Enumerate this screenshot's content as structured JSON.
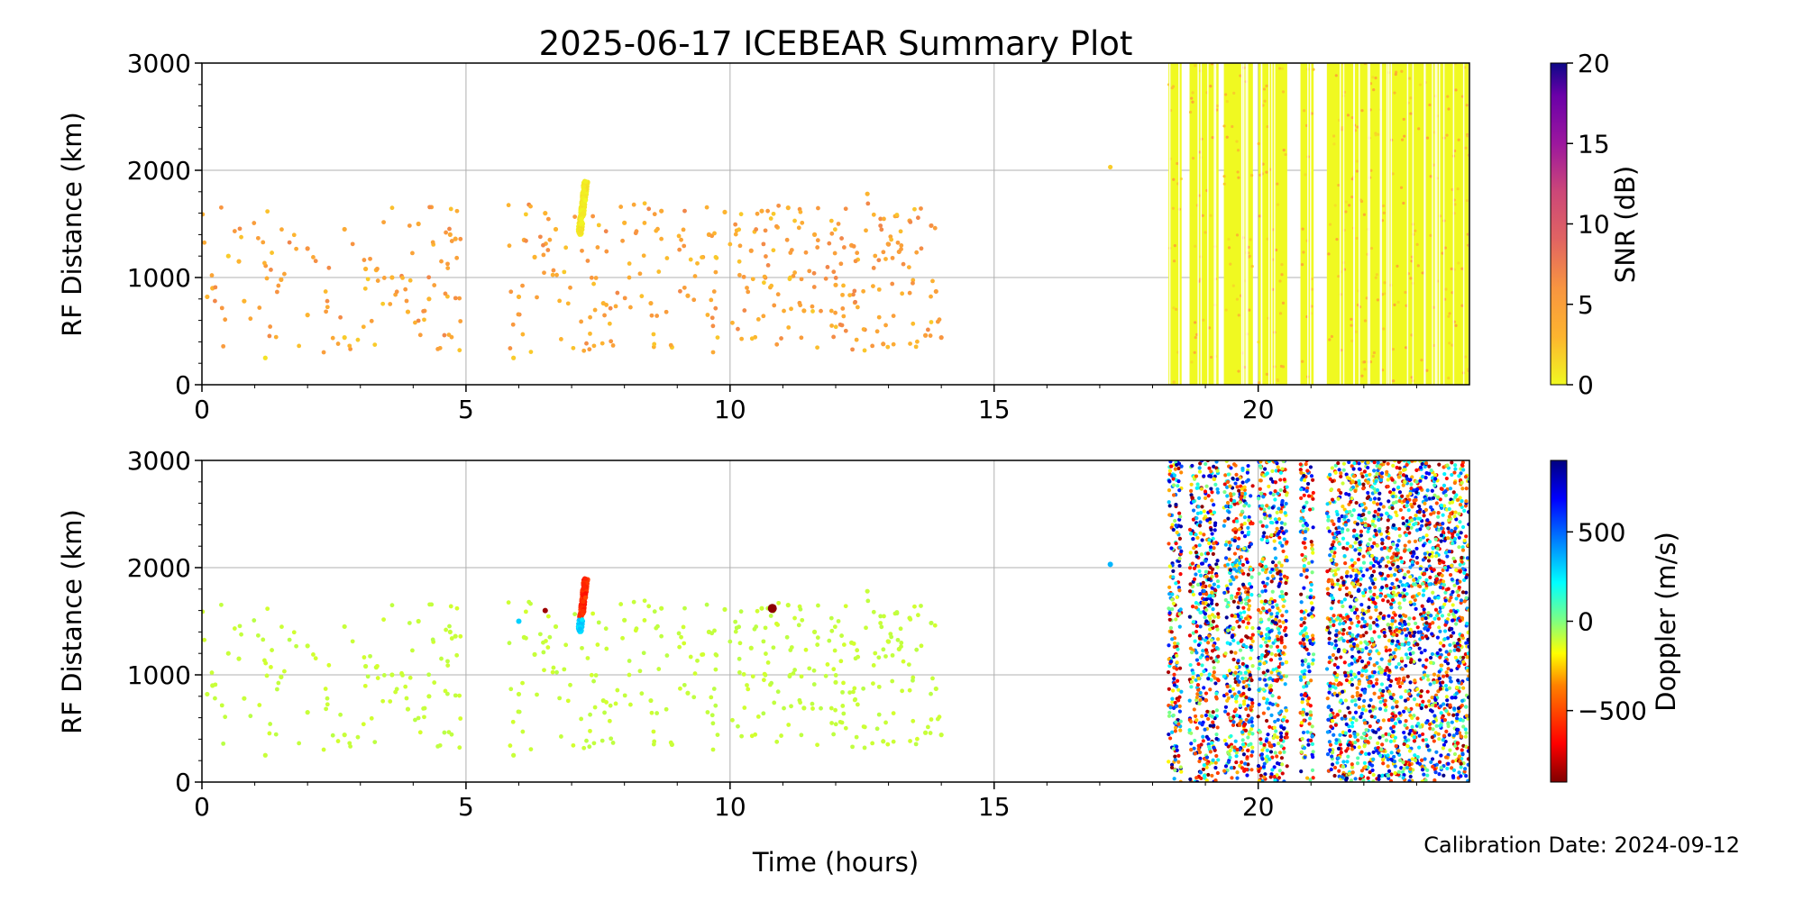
{
  "title": "2025-06-17 ICEBEAR Summary Plot",
  "calibration_text": "Calibration Date: 2024-09-12",
  "chart_data": [
    {
      "type": "scatter",
      "panel": "top",
      "title": "2025-06-17 ICEBEAR Summary Plot",
      "xlabel": "Time (hours)",
      "ylabel": "RF Distance (km)",
      "xlim": [
        0,
        24
      ],
      "ylim": [
        0,
        3000
      ],
      "xticks": [
        "0",
        "5",
        "10",
        "15",
        "20"
      ],
      "yticks": [
        "0",
        "1000",
        "2000",
        "3000"
      ],
      "grid": true,
      "colorbar": {
        "label": "SNR (dB)",
        "ticks": [
          "0",
          "5",
          "10",
          "15",
          "20"
        ],
        "range": [
          0,
          20
        ],
        "colormap": "plasma_r"
      },
      "sparse_points": [
        [
          0.1,
          820,
          3
        ],
        [
          0.2,
          900,
          3
        ],
        [
          0.5,
          1200,
          2
        ],
        [
          0.7,
          1150,
          3
        ],
        [
          0.8,
          780,
          3
        ],
        [
          1.2,
          250,
          1
        ],
        [
          1.5,
          980,
          4
        ],
        [
          2.0,
          1270,
          6
        ],
        [
          2.0,
          650,
          3
        ],
        [
          2.7,
          1450,
          4
        ],
        [
          2.7,
          440,
          2
        ],
        [
          3.1,
          1080,
          3
        ],
        [
          3.3,
          1070,
          3
        ],
        [
          3.6,
          1000,
          3
        ],
        [
          3.9,
          680,
          3
        ],
        [
          4.1,
          1500,
          4
        ],
        [
          4.3,
          800,
          3
        ],
        [
          4.7,
          1400,
          4
        ],
        [
          4.8,
          1360,
          4
        ],
        [
          6.0,
          820,
          3
        ],
        [
          6.1,
          1350,
          4
        ],
        [
          6.3,
          1190,
          3
        ],
        [
          6.5,
          1600,
          3
        ],
        [
          7.6,
          760,
          3
        ],
        [
          8.0,
          1510,
          3
        ],
        [
          8.5,
          760,
          4
        ],
        [
          8.7,
          1620,
          4
        ],
        [
          9.2,
          830,
          4
        ],
        [
          9.6,
          1400,
          4
        ],
        [
          9.9,
          1610,
          3
        ],
        [
          10.4,
          1250,
          5
        ],
        [
          10.6,
          1620,
          4
        ],
        [
          11.1,
          1650,
          3
        ],
        [
          11.6,
          1400,
          4
        ],
        [
          12.0,
          930,
          4
        ],
        [
          12.3,
          1300,
          5
        ],
        [
          12.6,
          1780,
          3
        ],
        [
          13.0,
          1310,
          6
        ],
        [
          13.2,
          1240,
          5
        ],
        [
          13.4,
          1530,
          4
        ],
        [
          13.7,
          460,
          5
        ],
        [
          13.9,
          870,
          5
        ],
        [
          14.0,
          440,
          6
        ],
        [
          5.9,
          250,
          2
        ],
        [
          6.7,
          1450,
          3
        ],
        [
          8.9,
          350,
          2
        ],
        [
          11.4,
          690,
          4
        ],
        [
          12.9,
          380,
          5
        ],
        [
          17.2,
          2030,
          2
        ]
      ],
      "clusters": [
        {
          "x_range": [
            0,
            14
          ],
          "y_range": [
            300,
            1700
          ],
          "snr_range": [
            2,
            7
          ],
          "description": "scattered echoes 0–14 h"
        },
        {
          "x_range": [
            7.05,
            7.4
          ],
          "y_range": [
            1400,
            1900
          ],
          "snr_range": [
            0,
            1
          ],
          "description": "dense echo streak near 7.2 h"
        },
        {
          "x_range": [
            18.3,
            24
          ],
          "y_range": [
            0,
            3000
          ],
          "snr_range": [
            0,
            1
          ],
          "description": "dense band 18.3–24 h with gaps"
        }
      ],
      "dense_band_segments": [
        [
          18.3,
          18.55
        ],
        [
          18.7,
          19.25
        ],
        [
          19.35,
          19.9
        ],
        [
          20.0,
          20.55
        ],
        [
          20.8,
          21.05
        ],
        [
          21.3,
          24.0
        ]
      ]
    },
    {
      "type": "scatter",
      "panel": "bottom",
      "xlabel": "Time (hours)",
      "ylabel": "RF Distance (km)",
      "xlim": [
        0,
        24
      ],
      "ylim": [
        0,
        3000
      ],
      "xticks": [
        "0",
        "5",
        "10",
        "15",
        "20"
      ],
      "yticks": [
        "0",
        "1000",
        "2000",
        "3000"
      ],
      "grid": true,
      "colorbar": {
        "label": "Doppler (m/s)",
        "ticks": [
          "500",
          "0",
          "−500"
        ],
        "tick_values": [
          500,
          0,
          -500
        ],
        "range": [
          -900,
          900
        ],
        "colormap": "jet_r"
      },
      "sparse_points_doppler": "approximately -100 m/s (green) for scattered echoes 0–14 h",
      "notable_points": [
        [
          6.0,
          1500,
          300
        ],
        [
          6.5,
          1600,
          -850
        ],
        [
          10.8,
          1620,
          -880
        ],
        [
          17.2,
          2030,
          350
        ]
      ],
      "clusters": [
        {
          "x_range": [
            7.05,
            7.4
          ],
          "y_range": [
            1400,
            1900
          ],
          "doppler_range": [
            -600,
            300
          ],
          "description": "echo streak near 7.2 h, orange with cyan tail"
        },
        {
          "x_range": [
            18.3,
            24
          ],
          "y_range": [
            0,
            3000
          ],
          "doppler_range": [
            -900,
            900
          ],
          "description": "dense mixed-Doppler band with gaps"
        }
      ]
    }
  ],
  "colors": {
    "grid": "#b0b0b0",
    "axis": "#000000",
    "snr_low": "#f0f921",
    "snr_mid": "#f89540",
    "snr_high": "#0d0887",
    "doppler_zero": "#7fff7f"
  }
}
